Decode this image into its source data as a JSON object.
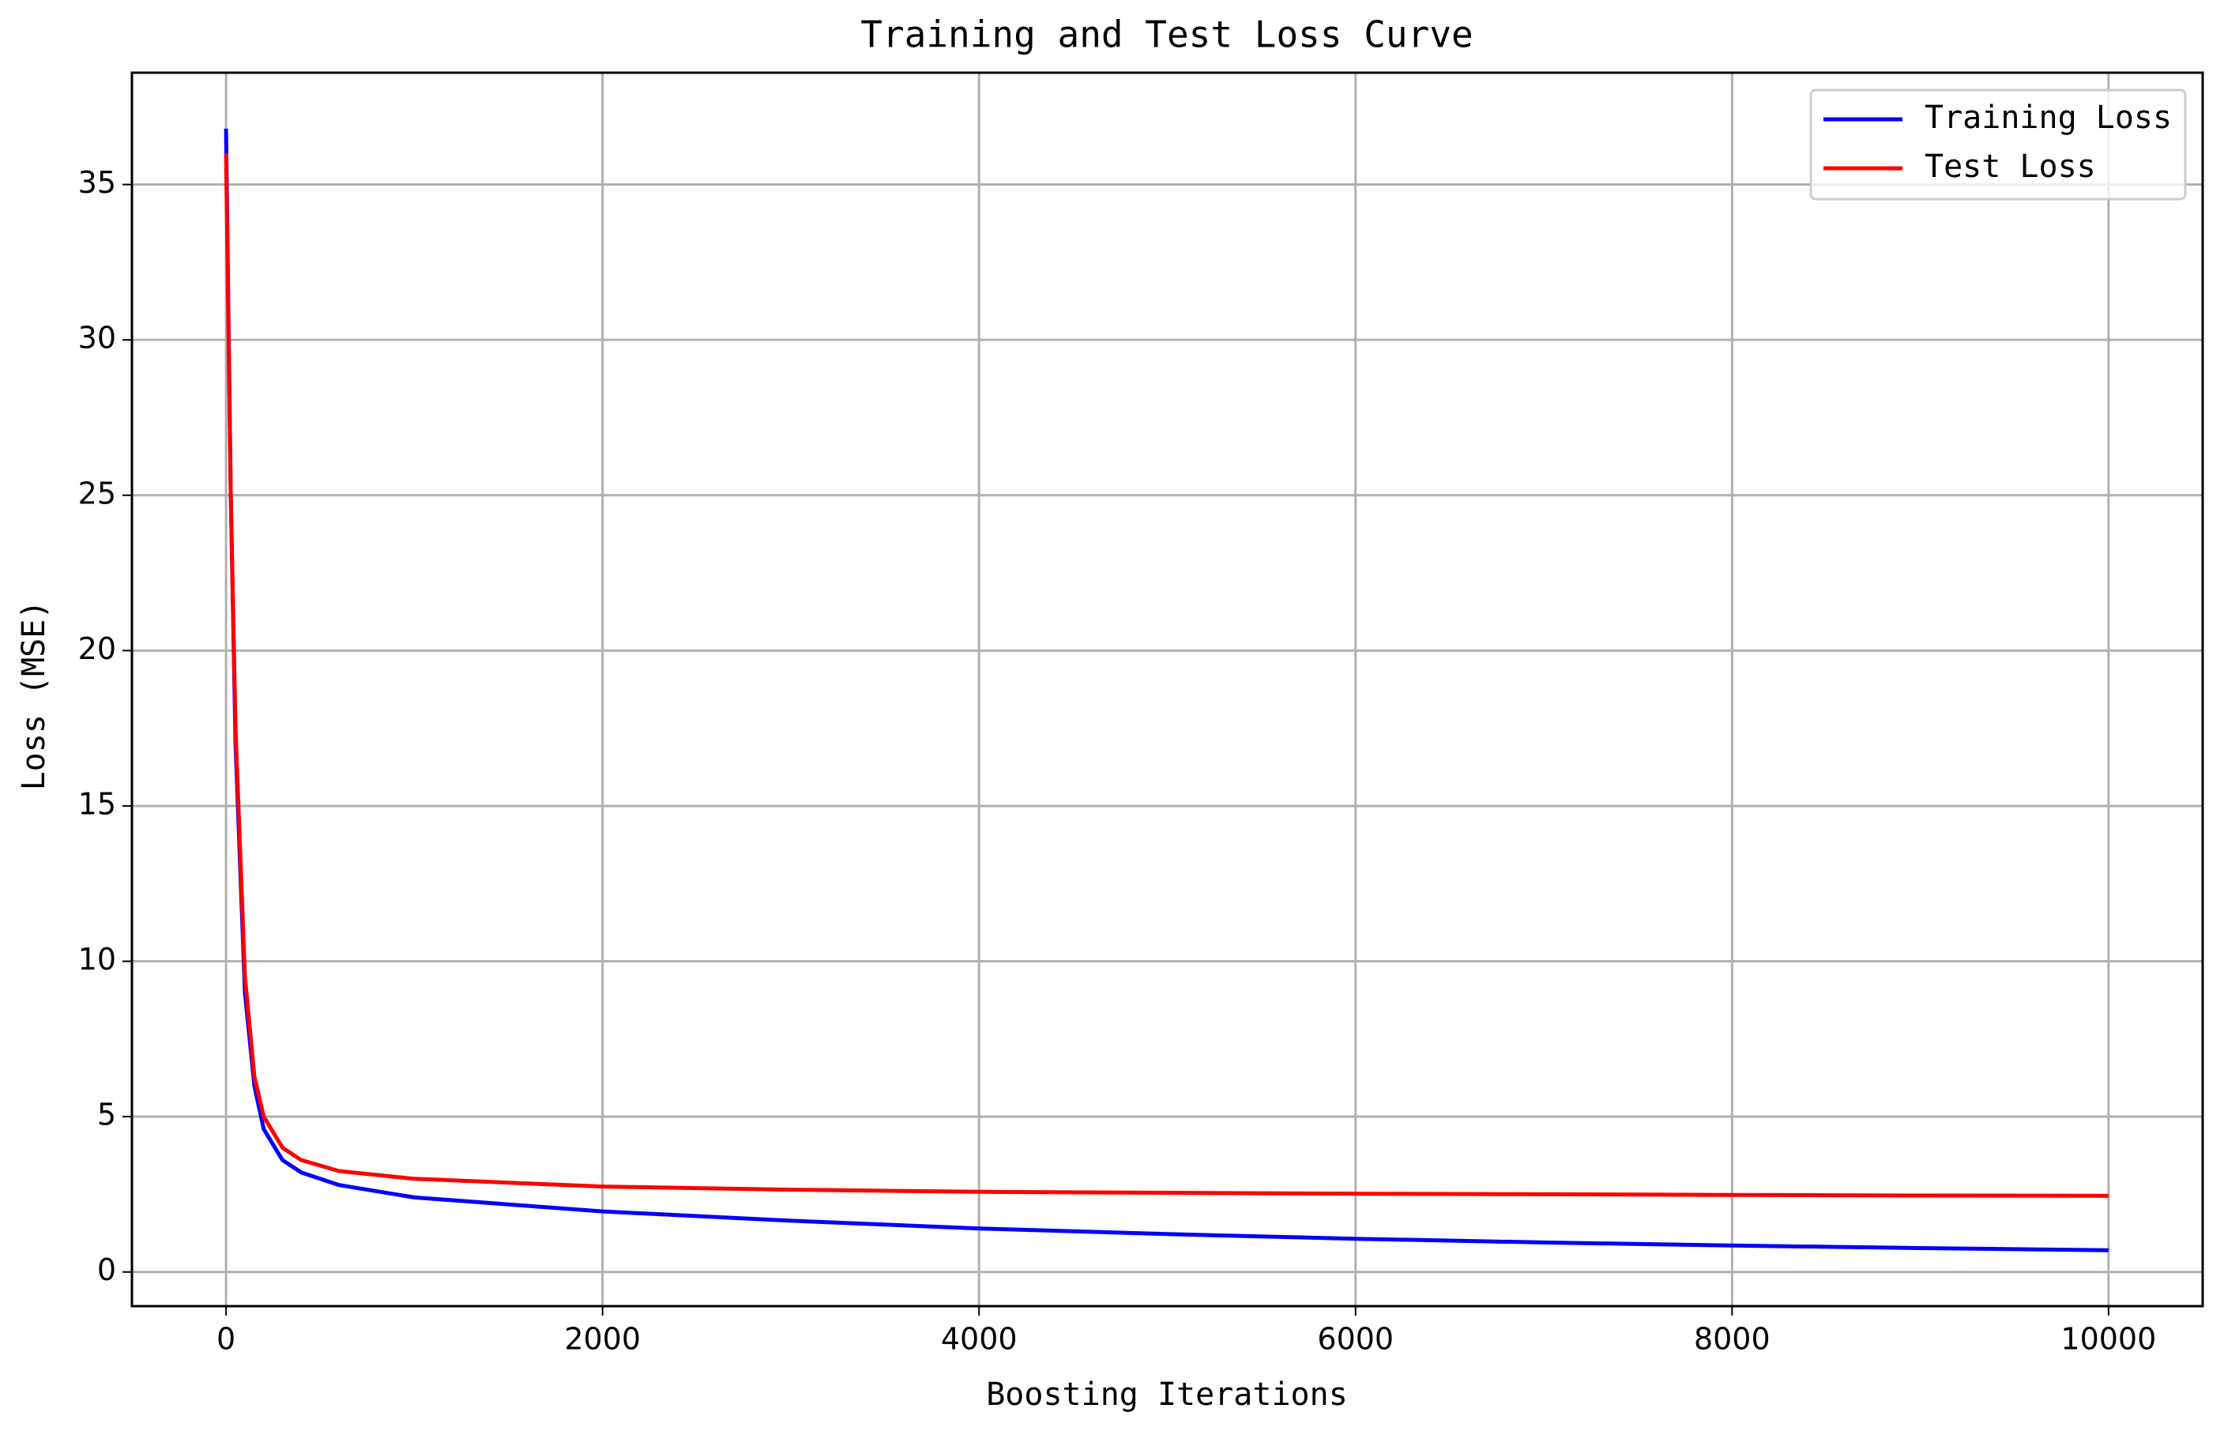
{
  "chart_data": {
    "type": "line",
    "title": "Training and Test Loss Curve",
    "x_label": "Boosting Iterations",
    "y_label": "Loss (MSE)",
    "x": [
      0,
      25,
      50,
      100,
      150,
      200,
      300,
      400,
      600,
      1000,
      2000,
      3000,
      4000,
      5000,
      6000,
      7000,
      8000,
      9000,
      10000
    ],
    "series": [
      {
        "name": "Training Loss",
        "color": "#0000ff",
        "values": [
          36.8,
          25,
          17,
          9,
          6,
          4.6,
          3.6,
          3.2,
          2.8,
          2.4,
          1.95,
          1.65,
          1.4,
          1.22,
          1.07,
          0.95,
          0.85,
          0.77,
          0.7
        ]
      },
      {
        "name": "Test Loss",
        "color": "#ff0000",
        "values": [
          36.0,
          25,
          17.5,
          9.5,
          6.3,
          5,
          4,
          3.6,
          3.25,
          3.0,
          2.75,
          2.65,
          2.58,
          2.55,
          2.52,
          2.5,
          2.48,
          2.46,
          2.45
        ]
      }
    ],
    "xlim": [
      -500,
      10500
    ],
    "ylim": [
      -1.1,
      38.6
    ],
    "xticks": [
      0,
      2000,
      4000,
      6000,
      8000,
      10000
    ],
    "yticks": [
      0,
      5,
      10,
      15,
      20,
      25,
      30,
      35
    ],
    "grid": true,
    "legend": "upper right"
  }
}
